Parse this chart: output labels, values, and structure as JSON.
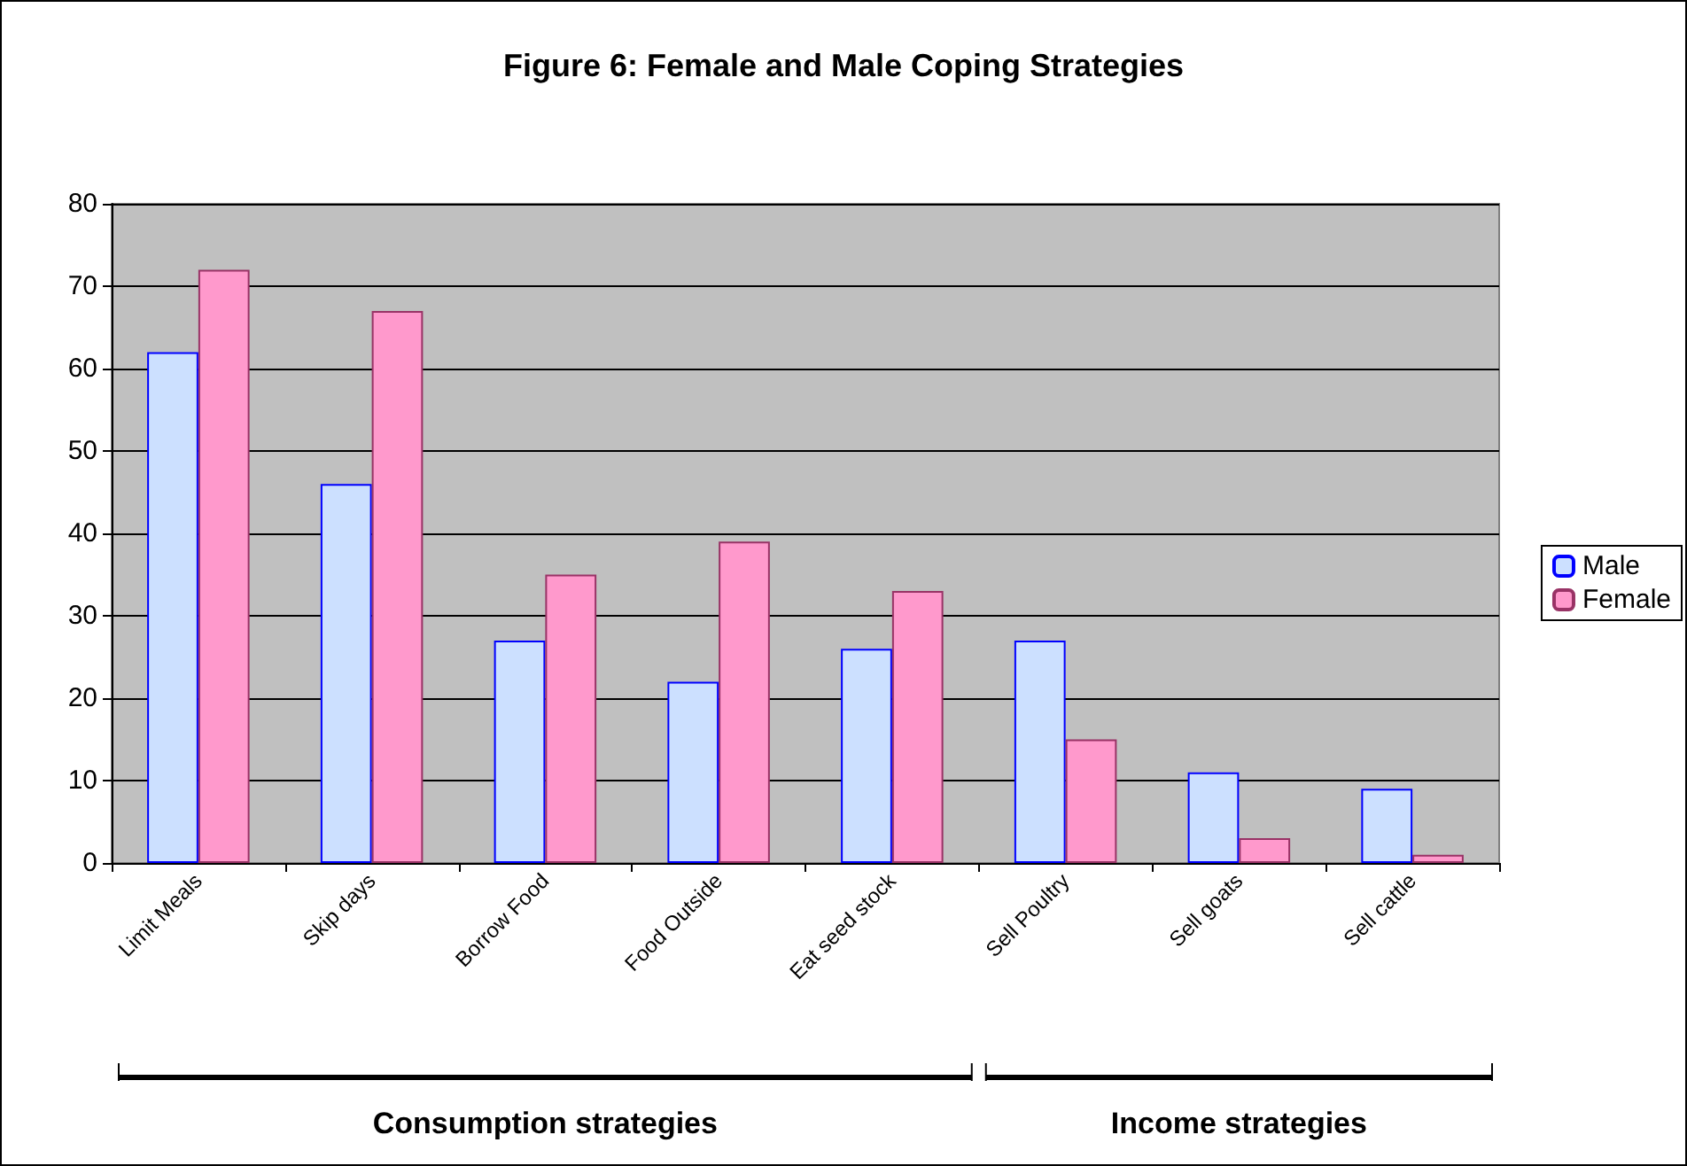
{
  "chart_data": {
    "type": "bar",
    "title": "Figure 6: Female and Male Coping Strategies",
    "categories": [
      "Limit Meals",
      "Skip days",
      "Borrow Food",
      "Food Outside",
      "Eat seed stock",
      "Sell Poultry",
      "Sell goats",
      "Sell cattle"
    ],
    "series": [
      {
        "name": "Male",
        "color": "#cce0ff",
        "values": [
          62,
          46,
          27,
          22,
          26,
          27,
          11,
          9
        ]
      },
      {
        "name": "Female",
        "color": "#ff99cc",
        "values": [
          72,
          67,
          35,
          39,
          33,
          15,
          3,
          1
        ]
      }
    ],
    "ylim": [
      0,
      80
    ],
    "yticks": [
      0,
      10,
      20,
      30,
      40,
      50,
      60,
      70,
      80
    ],
    "grid": "y",
    "legend": "right",
    "annotations": [
      "Consumption strategies",
      "Income strategies"
    ]
  }
}
